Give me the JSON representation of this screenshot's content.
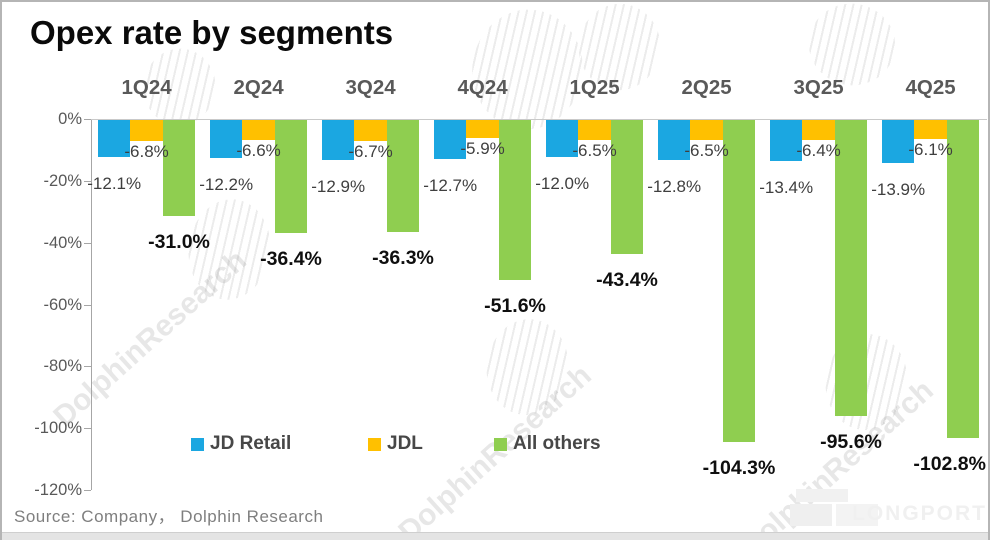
{
  "title": "Opex rate by segments",
  "source": "Source:  Company，  Dolphin Research",
  "watermark": {
    "text": "DolphinResearch",
    "logo_text": "LONGPORT"
  },
  "legend": [
    {
      "label": "JD Retail",
      "color": "#1BA7E1"
    },
    {
      "label": "JDL",
      "color": "#FFC000"
    },
    {
      "label": "All others",
      "color": "#8FCE50"
    }
  ],
  "y_axis": {
    "ticks": [
      "0%",
      "-20%",
      "-40%",
      "-60%",
      "-80%",
      "-100%",
      "-120%"
    ],
    "min": -120,
    "max": 0
  },
  "chart_data": {
    "type": "bar",
    "title": "Opex rate by segments",
    "categories": [
      "1Q24",
      "2Q24",
      "3Q24",
      "4Q24",
      "1Q25",
      "2Q25",
      "3Q25",
      "4Q25"
    ],
    "series": [
      {
        "name": "JD Retail",
        "color": "#1BA7E1",
        "values": [
          -12.1,
          -12.2,
          -12.9,
          -12.7,
          -12.0,
          -12.8,
          -13.4,
          -13.9
        ]
      },
      {
        "name": "JDL",
        "color": "#FFC000",
        "values": [
          -6.8,
          -6.6,
          -6.7,
          -5.9,
          -6.5,
          -6.5,
          -6.4,
          -6.1
        ]
      },
      {
        "name": "All others",
        "color": "#8FCE50",
        "values": [
          -31.0,
          -36.4,
          -36.3,
          -51.6,
          -43.4,
          -104.3,
          -95.6,
          -102.8
        ]
      }
    ],
    "xlabel": "",
    "ylabel": "",
    "ylim": [
      -120,
      0
    ],
    "grid": false,
    "legend_position": "bottom",
    "data_labels": true
  }
}
